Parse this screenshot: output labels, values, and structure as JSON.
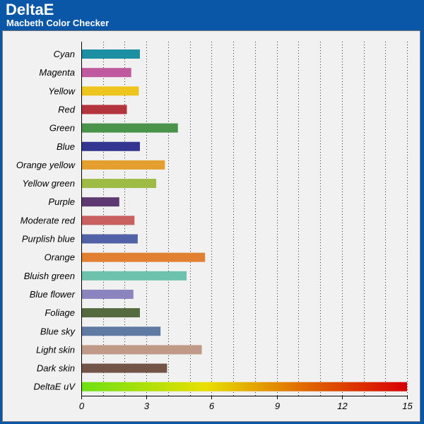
{
  "header": {
    "title": "DeltaE",
    "subtitle": "Macbeth Color Checker"
  },
  "colors": {
    "header_bg": "#0a57a8",
    "panel_bg": "#f1f1f1",
    "gradient": [
      "#6ee014",
      "#e8e000",
      "#e06a00",
      "#d80000"
    ]
  },
  "chart_data": {
    "type": "bar",
    "orientation": "horizontal",
    "title": "",
    "xlabel": "",
    "ylabel": "",
    "xlim": [
      0,
      15
    ],
    "xticks": [
      0,
      3,
      6,
      9,
      12,
      15
    ],
    "grid": "vertical dotted",
    "categories": [
      "Cyan",
      "Magenta",
      "Yellow",
      "Red",
      "Green",
      "Blue",
      "Orange yellow",
      "Yellow green",
      "Purple",
      "Moderate red",
      "Purplish blue",
      "Orange",
      "Bluish green",
      "Blue flower",
      "Foliage",
      "Blue sky",
      "Light skin",
      "Dark skin",
      "DeltaE uV"
    ],
    "values": [
      2.7,
      2.3,
      2.65,
      2.1,
      4.45,
      2.7,
      3.85,
      3.45,
      1.75,
      2.45,
      2.6,
      5.7,
      4.85,
      2.4,
      2.7,
      3.65,
      5.55,
      3.95,
      15
    ],
    "bar_colors": [
      "#1d8fa3",
      "#c05aa0",
      "#edc51c",
      "#b4343e",
      "#4a934a",
      "#33368e",
      "#e49f2f",
      "#9dbb45",
      "#5e3870",
      "#c8605f",
      "#5161a8",
      "#e08030",
      "#6dc2ad",
      "#8a85bf",
      "#566a40",
      "#5f7aa3",
      "#c09a86",
      "#735447",
      "gradient"
    ]
  }
}
